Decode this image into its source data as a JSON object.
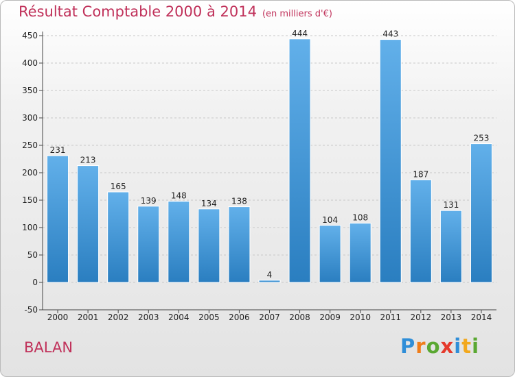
{
  "header": {
    "title": "Résultat Comptable 2000 à 2014",
    "subtitle": "(en milliers d'€)"
  },
  "footer": {
    "commune": "BALAN",
    "logo_text": "Proxiti"
  },
  "colors": {
    "title": "#c0315a",
    "bar_top": "#62b0ea",
    "bar_bottom": "#2a7ec0",
    "logo": [
      "#2f8ed8",
      "#ef7d1a",
      "#5aa832",
      "#e53a2c",
      "#2f8ed8",
      "#f2a81d",
      "#5aa832"
    ]
  },
  "chart_data": {
    "type": "bar",
    "title": "Résultat Comptable 2000 à 2014",
    "subtitle": "(en milliers d'€)",
    "xlabel": "",
    "ylabel": "",
    "categories": [
      "2000",
      "2001",
      "2002",
      "2003",
      "2004",
      "2005",
      "2006",
      "2007",
      "2008",
      "2009",
      "2010",
      "2011",
      "2012",
      "2013",
      "2014"
    ],
    "values": [
      231,
      213,
      165,
      139,
      148,
      134,
      138,
      4,
      444,
      104,
      108,
      443,
      187,
      131,
      253
    ],
    "ylim": [
      -50,
      450
    ],
    "yticks": [
      -50,
      0,
      50,
      100,
      150,
      200,
      250,
      300,
      350,
      400,
      450
    ],
    "grid": "horizontal dashed",
    "legend": "none"
  }
}
